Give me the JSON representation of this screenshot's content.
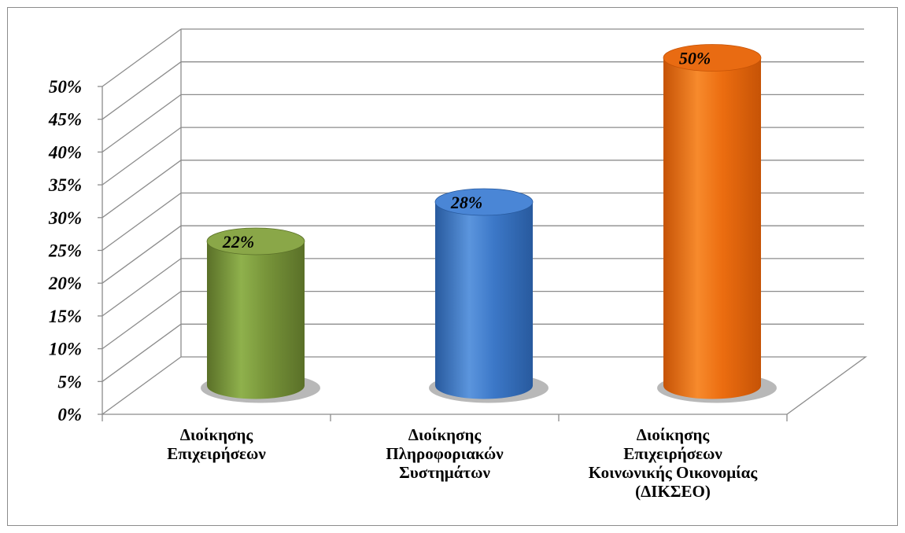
{
  "chart_data": {
    "type": "bar",
    "style": "3d-cylinder",
    "categories": [
      [
        "Διοίκησης",
        "Επιχειρήσεων"
      ],
      [
        "Διοίκησης",
        "Πληροφοριακών",
        "Συστημάτων"
      ],
      [
        "Διοίκησης",
        "Επιχειρήσεων",
        "Κοινωνικής Οικονομίας",
        "(ΔΙΚΣΕΟ)"
      ]
    ],
    "values": [
      22,
      28,
      50
    ],
    "data_labels": [
      "22%",
      "28%",
      "50%"
    ],
    "ylim": [
      0,
      50
    ],
    "y_ticks": [
      "0%",
      "5%",
      "10%",
      "15%",
      "20%",
      "25%",
      "30%",
      "35%",
      "40%",
      "45%",
      "50%"
    ],
    "grid": true,
    "legend": "none",
    "colors": [
      {
        "main": "#78953a",
        "light": "#8fb14c",
        "dark": "#5a7028",
        "top": "#8aa748"
      },
      {
        "main": "#3c78c8",
        "light": "#5b95dd",
        "dark": "#285a9e",
        "top": "#4a86d6"
      },
      {
        "main": "#ec6d10",
        "light": "#f78a2c",
        "dark": "#c65306",
        "top": "#e96b12"
      }
    ]
  }
}
